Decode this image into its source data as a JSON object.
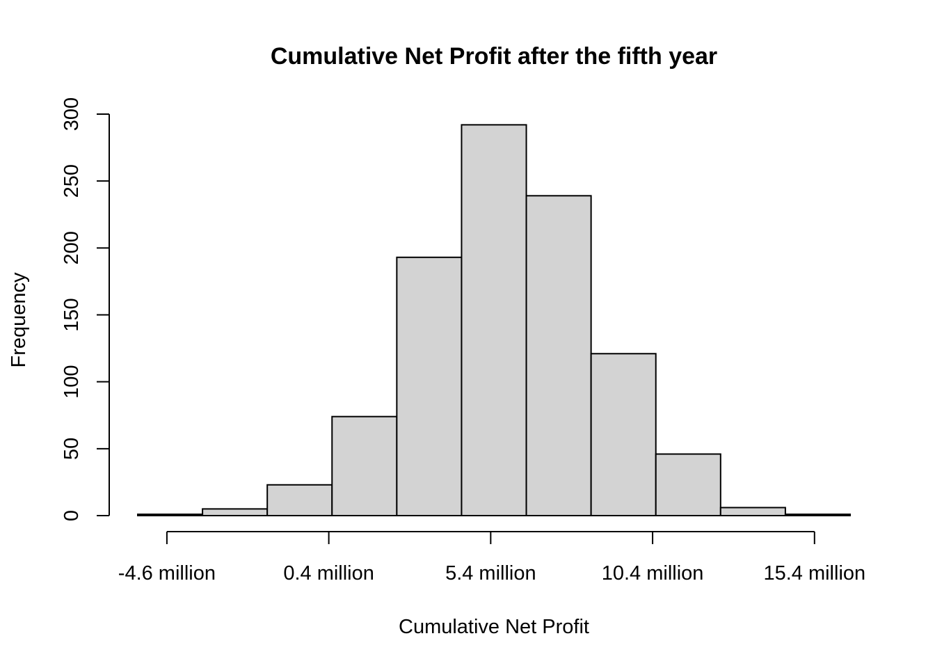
{
  "chart_data": {
    "type": "bar",
    "title": "Cumulative Net Profit after the fifth year",
    "xlabel": "Cumulative Net Profit",
    "ylabel": "Frequency",
    "x_unit": "million",
    "bin_edges": [
      -5.5,
      -3.5,
      -1.5,
      0.5,
      2.5,
      4.5,
      6.5,
      8.5,
      10.5,
      12.5,
      14.5,
      16.5
    ],
    "values": [
      1,
      5,
      23,
      74,
      193,
      292,
      239,
      121,
      46,
      6,
      1
    ],
    "xlim": [
      -5.5,
      16.5
    ],
    "ylim": [
      0,
      300
    ],
    "x_ticks": [
      -4.6,
      0.4,
      5.4,
      10.4,
      15.4
    ],
    "x_tick_labels": [
      "-4.6 million",
      "0.4 million",
      "5.4 million",
      "10.4 million",
      "15.4 million"
    ],
    "y_ticks": [
      0,
      50,
      100,
      150,
      200,
      250,
      300
    ],
    "y_tick_labels": [
      "0",
      "50",
      "100",
      "150",
      "200",
      "250",
      "300"
    ],
    "bar_fill": "#d3d3d3",
    "bar_stroke": "#000000",
    "grid": false,
    "legend": "none"
  }
}
